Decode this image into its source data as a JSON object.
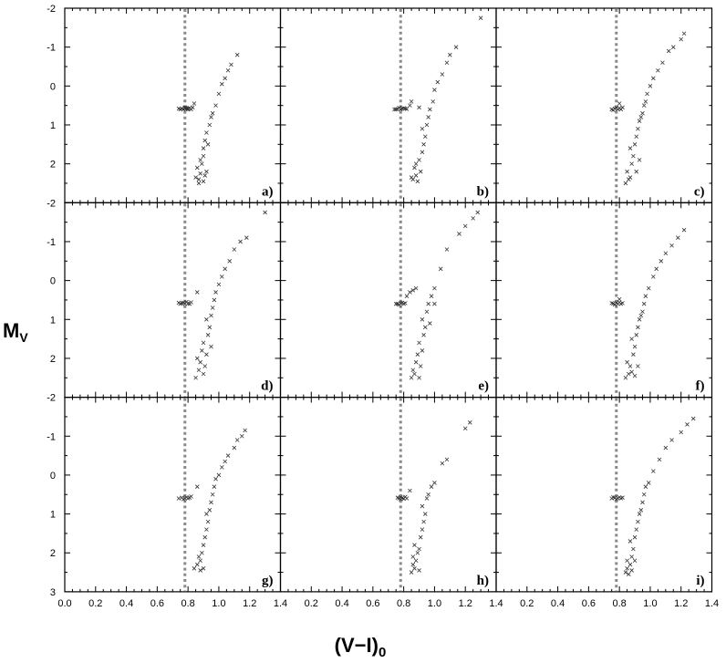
{
  "chart_data": {
    "type": "scatter",
    "layout": "3x3 panel grid",
    "xlabel_main": "(V−I)",
    "xlabel_sub": "0",
    "ylabel_main": "M",
    "ylabel_sub": "V",
    "xlim": [
      0.0,
      1.4
    ],
    "ylim": [
      3,
      -2
    ],
    "y_inverted": true,
    "xticks": [
      "0.0",
      "0.2",
      "0.4",
      "0.6",
      "0.8",
      "1.0",
      "1.2",
      "1.4"
    ],
    "xtick_values": [
      0.0,
      0.2,
      0.4,
      0.6,
      0.8,
      1.0,
      1.2,
      1.4
    ],
    "yticks": [
      "-2",
      "-1",
      "0",
      "1",
      "2",
      "3"
    ],
    "ytick_values": [
      -2,
      -1,
      0,
      1,
      2,
      3
    ],
    "reference_line": {
      "x": 0.78,
      "style": "dotted",
      "color": "#8a8a8a"
    },
    "marker": "x",
    "panels": [
      {
        "label": "a)",
        "points": [
          [
            0.76,
            0.58
          ],
          [
            0.78,
            0.57
          ],
          [
            0.79,
            0.59
          ],
          [
            0.8,
            0.58
          ],
          [
            0.77,
            0.6
          ],
          [
            0.81,
            0.57
          ],
          [
            0.75,
            0.6
          ],
          [
            0.8,
            0.6
          ],
          [
            0.78,
            0.55
          ],
          [
            0.74,
            0.58
          ],
          [
            0.82,
            0.6
          ],
          [
            0.79,
            0.56
          ],
          [
            0.87,
            2.4
          ],
          [
            0.88,
            2.25
          ],
          [
            0.86,
            2.1
          ],
          [
            0.9,
            2.45
          ],
          [
            0.89,
            2.0
          ],
          [
            0.91,
            2.3
          ],
          [
            0.85,
            2.35
          ],
          [
            0.88,
            1.9
          ],
          [
            0.92,
            2.2
          ],
          [
            0.87,
            2.5
          ],
          [
            0.9,
            1.6
          ],
          [
            0.91,
            1.4
          ],
          [
            0.92,
            1.2
          ],
          [
            0.93,
            1.5
          ],
          [
            0.94,
            1.0
          ],
          [
            0.9,
            1.8
          ],
          [
            0.95,
            0.8
          ],
          [
            0.96,
            0.7
          ],
          [
            0.98,
            0.5
          ],
          [
            1.0,
            0.2
          ],
          [
            1.02,
            -0.05
          ],
          [
            1.04,
            -0.2
          ],
          [
            1.06,
            -0.4
          ],
          [
            1.08,
            -0.55
          ],
          [
            1.12,
            -0.8
          ],
          [
            0.83,
            0.55
          ],
          [
            0.84,
            0.45
          ]
        ]
      },
      {
        "label": "b)",
        "points": [
          [
            0.76,
            0.59
          ],
          [
            0.79,
            0.58
          ],
          [
            0.78,
            0.6
          ],
          [
            0.81,
            0.58
          ],
          [
            0.77,
            0.56
          ],
          [
            0.75,
            0.6
          ],
          [
            0.8,
            0.57
          ],
          [
            0.82,
            0.59
          ],
          [
            0.74,
            0.6
          ],
          [
            0.84,
            0.5
          ],
          [
            0.85,
            0.4
          ],
          [
            0.86,
            2.4
          ],
          [
            0.88,
            2.3
          ],
          [
            0.87,
            2.1
          ],
          [
            0.89,
            2.45
          ],
          [
            0.9,
            1.9
          ],
          [
            0.91,
            2.2
          ],
          [
            0.85,
            2.35
          ],
          [
            0.92,
            1.7
          ],
          [
            0.88,
            2.0
          ],
          [
            0.93,
            1.5
          ],
          [
            0.94,
            1.3
          ],
          [
            0.92,
            1.1
          ],
          [
            0.95,
            1.0
          ],
          [
            0.96,
            0.8
          ],
          [
            0.97,
            0.6
          ],
          [
            0.99,
            0.4
          ],
          [
            1.0,
            0.1
          ],
          [
            1.02,
            -0.1
          ],
          [
            1.05,
            -0.3
          ],
          [
            1.08,
            -0.6
          ],
          [
            1.1,
            -0.8
          ],
          [
            1.14,
            -1.0
          ],
          [
            1.3,
            -1.75
          ],
          [
            0.9,
            0.55
          ]
        ]
      },
      {
        "label": "c)",
        "points": [
          [
            0.75,
            0.6
          ],
          [
            0.77,
            0.58
          ],
          [
            0.79,
            0.6
          ],
          [
            0.8,
            0.57
          ],
          [
            0.78,
            0.56
          ],
          [
            0.81,
            0.6
          ],
          [
            0.76,
            0.62
          ],
          [
            0.82,
            0.55
          ],
          [
            0.8,
            0.45
          ],
          [
            0.84,
            2.5
          ],
          [
            0.86,
            2.4
          ],
          [
            0.85,
            2.2
          ],
          [
            0.87,
            2.35
          ],
          [
            0.88,
            2.0
          ],
          [
            0.89,
            1.8
          ],
          [
            0.87,
            1.6
          ],
          [
            0.9,
            1.5
          ],
          [
            0.91,
            1.3
          ],
          [
            0.92,
            1.1
          ],
          [
            0.93,
            0.9
          ],
          [
            0.94,
            0.8
          ],
          [
            0.95,
            0.7
          ],
          [
            0.96,
            0.5
          ],
          [
            0.97,
            0.4
          ],
          [
            0.98,
            0.2
          ],
          [
            1.0,
            0.0
          ],
          [
            1.02,
            -0.2
          ],
          [
            1.05,
            -0.4
          ],
          [
            1.08,
            -0.6
          ],
          [
            1.12,
            -0.9
          ],
          [
            1.15,
            -1.0
          ],
          [
            1.2,
            -1.2
          ],
          [
            1.22,
            -1.35
          ],
          [
            0.91,
            2.2
          ],
          [
            0.93,
            1.9
          ]
        ]
      },
      {
        "label": "d)",
        "points": [
          [
            0.76,
            0.58
          ],
          [
            0.78,
            0.6
          ],
          [
            0.77,
            0.57
          ],
          [
            0.8,
            0.59
          ],
          [
            0.79,
            0.55
          ],
          [
            0.75,
            0.6
          ],
          [
            0.81,
            0.6
          ],
          [
            0.82,
            0.56
          ],
          [
            0.74,
            0.57
          ],
          [
            0.86,
            0.3
          ],
          [
            0.85,
            2.5
          ],
          [
            0.87,
            2.3
          ],
          [
            0.88,
            2.1
          ],
          [
            0.86,
            2.0
          ],
          [
            0.89,
            1.8
          ],
          [
            0.9,
            2.4
          ],
          [
            0.91,
            2.2
          ],
          [
            0.92,
            1.9
          ],
          [
            0.9,
            1.6
          ],
          [
            0.93,
            1.4
          ],
          [
            0.94,
            1.2
          ],
          [
            0.92,
            1.0
          ],
          [
            0.95,
            0.9
          ],
          [
            0.96,
            0.7
          ],
          [
            0.97,
            0.5
          ],
          [
            0.98,
            0.3
          ],
          [
            1.0,
            0.1
          ],
          [
            1.02,
            -0.1
          ],
          [
            1.04,
            -0.3
          ],
          [
            1.07,
            -0.5
          ],
          [
            1.1,
            -0.8
          ],
          [
            1.14,
            -1.0
          ],
          [
            1.18,
            -1.1
          ],
          [
            1.3,
            -1.75
          ],
          [
            0.95,
            1.7
          ]
        ]
      },
      {
        "label": "e)",
        "points": [
          [
            0.76,
            0.6
          ],
          [
            0.78,
            0.58
          ],
          [
            0.8,
            0.6
          ],
          [
            0.79,
            0.57
          ],
          [
            0.77,
            0.62
          ],
          [
            0.81,
            0.58
          ],
          [
            0.75,
            0.6
          ],
          [
            0.82,
            0.4
          ],
          [
            0.84,
            0.3
          ],
          [
            0.86,
            0.25
          ],
          [
            0.88,
            0.2
          ],
          [
            0.85,
            2.5
          ],
          [
            0.86,
            2.3
          ],
          [
            0.87,
            2.4
          ],
          [
            0.88,
            2.1
          ],
          [
            0.89,
            1.9
          ],
          [
            0.9,
            2.5
          ],
          [
            0.91,
            2.2
          ],
          [
            0.92,
            1.8
          ],
          [
            0.9,
            1.6
          ],
          [
            0.93,
            1.4
          ],
          [
            0.94,
            1.2
          ],
          [
            0.92,
            1.0
          ],
          [
            0.95,
            0.8
          ],
          [
            0.96,
            0.6
          ],
          [
            0.98,
            0.4
          ],
          [
            1.0,
            0.2
          ],
          [
            1.04,
            -0.3
          ],
          [
            1.08,
            -0.8
          ],
          [
            1.16,
            -1.2
          ],
          [
            1.2,
            -1.4
          ],
          [
            1.25,
            -1.6
          ],
          [
            1.28,
            -1.75
          ],
          [
            1.0,
            0.6
          ],
          [
            0.97,
            1.1
          ]
        ]
      },
      {
        "label": "f)",
        "points": [
          [
            0.76,
            0.59
          ],
          [
            0.78,
            0.57
          ],
          [
            0.79,
            0.6
          ],
          [
            0.8,
            0.56
          ],
          [
            0.77,
            0.62
          ],
          [
            0.81,
            0.6
          ],
          [
            0.75,
            0.58
          ],
          [
            0.82,
            0.58
          ],
          [
            0.8,
            0.48
          ],
          [
            0.84,
            2.5
          ],
          [
            0.86,
            2.4
          ],
          [
            0.87,
            2.2
          ],
          [
            0.85,
            2.1
          ],
          [
            0.88,
            2.35
          ],
          [
            0.89,
            1.9
          ],
          [
            0.9,
            1.7
          ],
          [
            0.88,
            1.5
          ],
          [
            0.91,
            1.4
          ],
          [
            0.92,
            1.2
          ],
          [
            0.93,
            1.0
          ],
          [
            0.94,
            0.9
          ],
          [
            0.95,
            0.8
          ],
          [
            0.96,
            0.6
          ],
          [
            0.97,
            0.4
          ],
          [
            0.99,
            0.2
          ],
          [
            1.02,
            -0.1
          ],
          [
            1.04,
            -0.3
          ],
          [
            1.07,
            -0.5
          ],
          [
            1.1,
            -0.7
          ],
          [
            1.14,
            -0.9
          ],
          [
            1.18,
            -1.1
          ],
          [
            1.22,
            -1.3
          ],
          [
            0.9,
            2.45
          ],
          [
            0.92,
            2.2
          ]
        ]
      },
      {
        "label": "g)",
        "points": [
          [
            0.74,
            0.6
          ],
          [
            0.76,
            0.58
          ],
          [
            0.78,
            0.6
          ],
          [
            0.79,
            0.57
          ],
          [
            0.8,
            0.6
          ],
          [
            0.77,
            0.62
          ],
          [
            0.81,
            0.58
          ],
          [
            0.82,
            0.55
          ],
          [
            0.86,
            0.3
          ],
          [
            0.84,
            2.4
          ],
          [
            0.86,
            2.3
          ],
          [
            0.87,
            2.1
          ],
          [
            0.88,
            2.45
          ],
          [
            0.89,
            2.0
          ],
          [
            0.9,
            1.8
          ],
          [
            0.91,
            1.6
          ],
          [
            0.92,
            1.4
          ],
          [
            0.93,
            1.2
          ],
          [
            0.92,
            1.0
          ],
          [
            0.94,
            0.9
          ],
          [
            0.95,
            0.7
          ],
          [
            0.96,
            0.5
          ],
          [
            0.97,
            0.3
          ],
          [
            0.98,
            0.1
          ],
          [
            1.0,
            0.0
          ],
          [
            1.02,
            -0.2
          ],
          [
            1.04,
            -0.35
          ],
          [
            1.06,
            -0.5
          ],
          [
            1.1,
            -0.7
          ],
          [
            1.12,
            -0.9
          ],
          [
            1.15,
            -1.0
          ],
          [
            1.17,
            -1.15
          ],
          [
            0.9,
            2.4
          ],
          [
            0.88,
            2.2
          ]
        ]
      },
      {
        "label": "h)",
        "points": [
          [
            0.76,
            0.58
          ],
          [
            0.77,
            0.6
          ],
          [
            0.78,
            0.57
          ],
          [
            0.79,
            0.59
          ],
          [
            0.8,
            0.61
          ],
          [
            0.81,
            0.56
          ],
          [
            0.78,
            0.62
          ],
          [
            0.82,
            0.6
          ],
          [
            0.84,
            0.4
          ],
          [
            0.85,
            2.5
          ],
          [
            0.86,
            2.3
          ],
          [
            0.87,
            2.4
          ],
          [
            0.88,
            2.2
          ],
          [
            0.89,
            2.0
          ],
          [
            0.87,
            1.8
          ],
          [
            0.9,
            1.9
          ],
          [
            0.91,
            1.6
          ],
          [
            0.92,
            1.4
          ],
          [
            0.93,
            1.2
          ],
          [
            0.94,
            1.0
          ],
          [
            0.92,
            0.8
          ],
          [
            0.95,
            0.6
          ],
          [
            0.96,
            0.5
          ],
          [
            0.98,
            0.3
          ],
          [
            1.0,
            0.2
          ],
          [
            1.05,
            -0.3
          ],
          [
            1.08,
            -0.4
          ],
          [
            1.2,
            -1.2
          ],
          [
            1.23,
            -1.35
          ],
          [
            0.9,
            2.45
          ],
          [
            0.86,
            2.1
          ]
        ]
      },
      {
        "label": "i)",
        "points": [
          [
            0.75,
            0.6
          ],
          [
            0.77,
            0.58
          ],
          [
            0.79,
            0.6
          ],
          [
            0.8,
            0.57
          ],
          [
            0.78,
            0.62
          ],
          [
            0.81,
            0.6
          ],
          [
            0.76,
            0.57
          ],
          [
            0.82,
            0.58
          ],
          [
            0.84,
            2.5
          ],
          [
            0.85,
            2.4
          ],
          [
            0.86,
            2.55
          ],
          [
            0.87,
            2.3
          ],
          [
            0.85,
            2.2
          ],
          [
            0.88,
            2.1
          ],
          [
            0.89,
            1.9
          ],
          [
            0.87,
            1.7
          ],
          [
            0.9,
            1.6
          ],
          [
            0.91,
            1.4
          ],
          [
            0.92,
            1.2
          ],
          [
            0.93,
            1.0
          ],
          [
            0.94,
            0.9
          ],
          [
            0.95,
            0.7
          ],
          [
            0.96,
            0.5
          ],
          [
            0.97,
            0.3
          ],
          [
            0.99,
            0.2
          ],
          [
            1.02,
            -0.1
          ],
          [
            1.06,
            -0.4
          ],
          [
            1.1,
            -0.7
          ],
          [
            1.14,
            -0.9
          ],
          [
            1.2,
            -1.1
          ],
          [
            1.24,
            -1.3
          ],
          [
            1.28,
            -1.45
          ],
          [
            0.9,
            2.2
          ],
          [
            0.88,
            2.45
          ]
        ]
      }
    ]
  }
}
